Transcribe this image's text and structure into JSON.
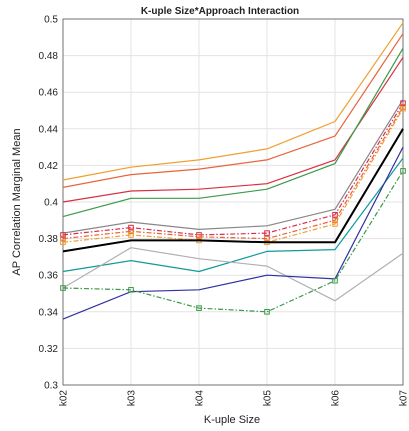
{
  "chart_data": {
    "type": "line",
    "title": "K-uple Size*Approach Interaction",
    "xlabel": "K-uple Size",
    "ylabel": "AP Correlation Marginal Mean",
    "categories": [
      "k02",
      "k03",
      "k04",
      "k05",
      "k06",
      "k07"
    ],
    "ylim": [
      0.3,
      0.5
    ],
    "yticks": [
      "0.3",
      "0.32",
      "0.34",
      "0.36",
      "0.38",
      "0.4",
      "0.42",
      "0.44",
      "0.46",
      "0.48",
      "0.5"
    ],
    "grid": true,
    "legend": "none",
    "series": [
      {
        "color": "#f0a030",
        "style": "solid",
        "marker": "none",
        "values": [
          0.412,
          0.419,
          0.423,
          0.429,
          0.444,
          0.498
        ]
      },
      {
        "color": "#e8643c",
        "style": "solid",
        "marker": "none",
        "values": [
          0.408,
          0.415,
          0.418,
          0.423,
          0.436,
          0.492
        ]
      },
      {
        "color": "#d83040",
        "style": "solid",
        "marker": "none",
        "values": [
          0.4,
          0.406,
          0.407,
          0.41,
          0.423,
          0.479
        ]
      },
      {
        "color": "#3a9a48",
        "style": "solid",
        "marker": "none",
        "values": [
          0.392,
          0.402,
          0.402,
          0.407,
          0.421,
          0.484
        ]
      },
      {
        "color": "#888888",
        "style": "solid",
        "marker": "none",
        "values": [
          0.383,
          0.389,
          0.385,
          0.387,
          0.396,
          0.456
        ]
      },
      {
        "color": "#d8304c",
        "style": "dashdot",
        "marker": "square",
        "values": [
          0.382,
          0.386,
          0.382,
          0.383,
          0.393,
          0.454
        ]
      },
      {
        "color": "#e8643c",
        "style": "dashdot",
        "marker": "square",
        "values": [
          0.38,
          0.384,
          0.381,
          0.38,
          0.39,
          0.452
        ]
      },
      {
        "color": "#f0a030",
        "style": "dashdot",
        "marker": "square",
        "values": [
          0.378,
          0.382,
          0.379,
          0.378,
          0.388,
          0.451
        ]
      },
      {
        "color": "#000000",
        "style": "solid",
        "marker": "none",
        "width": 2,
        "values": [
          0.373,
          0.379,
          0.379,
          0.378,
          0.378,
          0.44
        ]
      },
      {
        "color": "#109a9a",
        "style": "solid",
        "marker": "none",
        "values": [
          0.362,
          0.368,
          0.362,
          0.373,
          0.374,
          0.424
        ]
      },
      {
        "color": "#b0b0b0",
        "style": "solid",
        "marker": "none",
        "values": [
          0.353,
          0.375,
          0.369,
          0.365,
          0.346,
          0.372
        ]
      },
      {
        "color": "#3030a0",
        "style": "solid",
        "marker": "none",
        "values": [
          0.336,
          0.351,
          0.352,
          0.36,
          0.358,
          0.43
        ]
      },
      {
        "color": "#3a9a48",
        "style": "dashdot",
        "marker": "square",
        "values": [
          0.353,
          0.352,
          0.342,
          0.34,
          0.357,
          0.417
        ]
      }
    ]
  }
}
